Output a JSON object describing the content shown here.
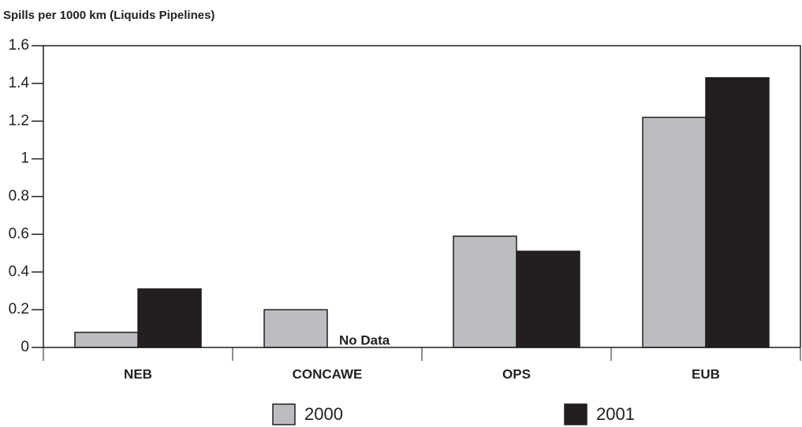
{
  "chart_data": {
    "type": "bar",
    "title": "Spills per 1000 km (Liquids Pipelines)",
    "categories": [
      "NEB",
      "CONCAWE",
      "OPS",
      "EUB"
    ],
    "series": [
      {
        "name": "2000",
        "color": "#bcbdc0",
        "values": [
          0.08,
          0.2,
          0.59,
          1.22
        ]
      },
      {
        "name": "2001",
        "color": "#231f20",
        "values": [
          0.31,
          null,
          0.51,
          1.43
        ]
      }
    ],
    "annotations": [
      {
        "text": "No Data"
      }
    ],
    "ylim": [
      0,
      1.6
    ],
    "yticks": [
      0,
      0.2,
      0.4,
      0.6,
      0.8,
      1,
      1.2,
      1.4,
      1.6
    ],
    "grid": false
  }
}
